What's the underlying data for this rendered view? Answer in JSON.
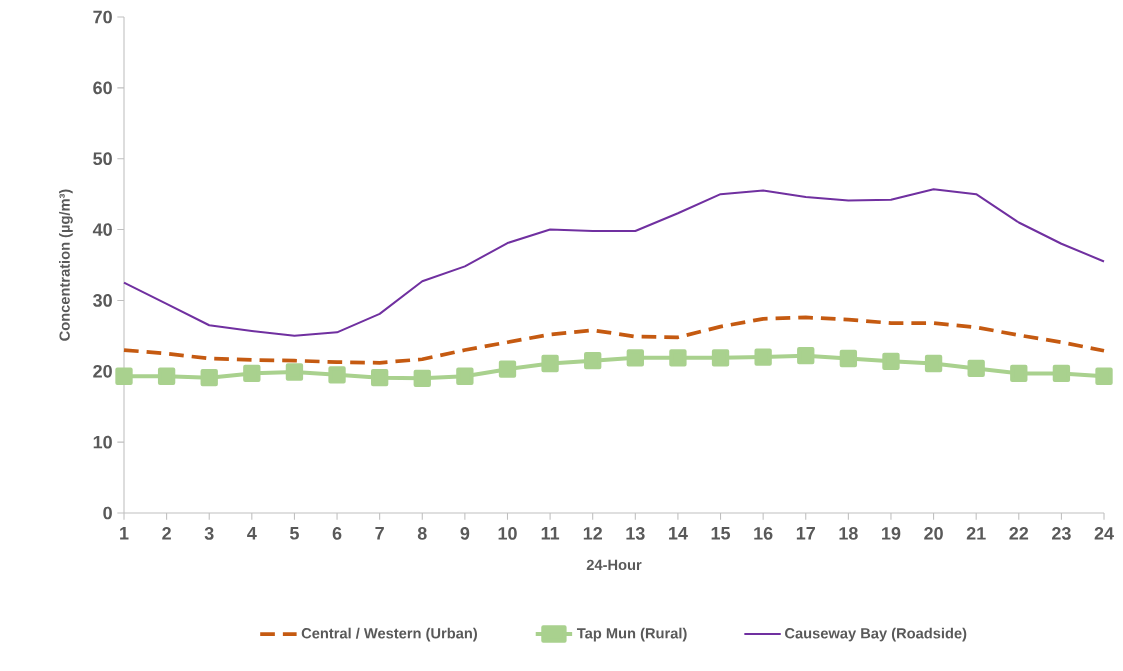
{
  "chart_data": {
    "type": "line",
    "xlabel": "24-Hour",
    "ylabel": "Concentration (µg/m³)",
    "categories": [
      "1",
      "2",
      "3",
      "4",
      "5",
      "6",
      "7",
      "8",
      "9",
      "10",
      "11",
      "12",
      "13",
      "14",
      "15",
      "16",
      "17",
      "18",
      "19",
      "20",
      "21",
      "22",
      "23",
      "24"
    ],
    "ylim": [
      0,
      70
    ],
    "yticks": [
      0,
      10,
      20,
      30,
      40,
      50,
      60,
      70
    ],
    "grid": false,
    "legend": "bottom",
    "series": [
      {
        "name": "Central / Western (Urban)",
        "color": "#c55a11",
        "line_style": "dashed",
        "marker": "none",
        "values": [
          23,
          22.5,
          21.8,
          21.6,
          21.5,
          21.3,
          21.2,
          21.7,
          23,
          24.1,
          25.2,
          25.8,
          24.9,
          24.8,
          26.3,
          27.4,
          27.6,
          27.3,
          26.8,
          26.8,
          26.2,
          25.1,
          24.1,
          22.9
        ]
      },
      {
        "name": "Tap Mun (Rural)",
        "color": "#a9d18e",
        "line_style": "solid",
        "marker": "square",
        "values": [
          19.3,
          19.3,
          19.1,
          19.7,
          19.9,
          19.5,
          19.1,
          19.0,
          19.3,
          20.3,
          21.1,
          21.5,
          21.9,
          21.9,
          21.9,
          22.0,
          22.2,
          21.8,
          21.4,
          21.1,
          20.4,
          19.7,
          19.7,
          19.3
        ]
      },
      {
        "name": "Causeway Bay (Roadside)",
        "color": "#7030a0",
        "line_style": "solid",
        "marker": "none",
        "values": [
          32.5,
          29.5,
          26.5,
          25.7,
          25,
          25.5,
          28.1,
          32.7,
          34.8,
          38.1,
          40,
          39.8,
          39.8,
          42.3,
          45,
          45.5,
          44.6,
          44.1,
          44.2,
          45.7,
          45,
          41,
          38,
          35.5
        ]
      }
    ]
  }
}
